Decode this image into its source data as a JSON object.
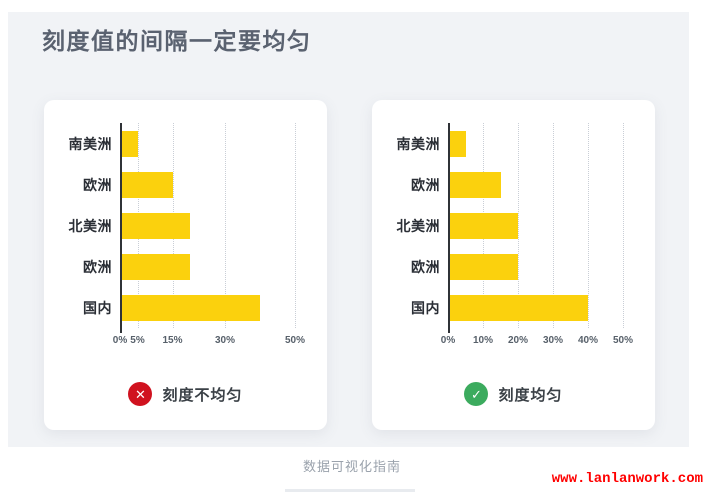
{
  "header": {
    "title": "刻度值的间隔一定要均匀"
  },
  "colors": {
    "background": "#f1f3f6",
    "card": "#ffffff",
    "bar": "#fbd10d",
    "bad": "#d0121f",
    "good": "#3cab5e",
    "axis": "#2f3237",
    "watermark": "#ff0000"
  },
  "icons": {
    "cross": "✕",
    "check": "✓"
  },
  "chart_data": [
    {
      "type": "bar",
      "orientation": "horizontal",
      "categories": [
        "南美洲",
        "欧洲",
        "北美洲",
        "欧洲",
        "国内"
      ],
      "values": [
        5,
        15,
        20,
        20,
        40
      ],
      "unit": "%",
      "xlim": [
        0,
        50
      ],
      "x_ticks": [
        0,
        5,
        15,
        30,
        50
      ],
      "x_tick_labels": [
        "0%",
        "5%",
        "15%",
        "30%",
        "50%"
      ],
      "grid": "dotted-vertical",
      "legend": "none",
      "caption": "刻度不均匀",
      "verdict": "bad"
    },
    {
      "type": "bar",
      "orientation": "horizontal",
      "categories": [
        "南美洲",
        "欧洲",
        "北美洲",
        "欧洲",
        "国内"
      ],
      "values": [
        5,
        15,
        20,
        20,
        40
      ],
      "unit": "%",
      "xlim": [
        0,
        50
      ],
      "x_ticks": [
        0,
        10,
        20,
        30,
        40,
        50
      ],
      "x_tick_labels": [
        "0%",
        "10%",
        "20%",
        "30%",
        "40%",
        "50%"
      ],
      "grid": "dotted-vertical",
      "legend": "none",
      "caption": "刻度均匀",
      "verdict": "good"
    }
  ],
  "footer": {
    "caption": "数据可视化指南",
    "watermark": "www.lanlanwork.com"
  }
}
